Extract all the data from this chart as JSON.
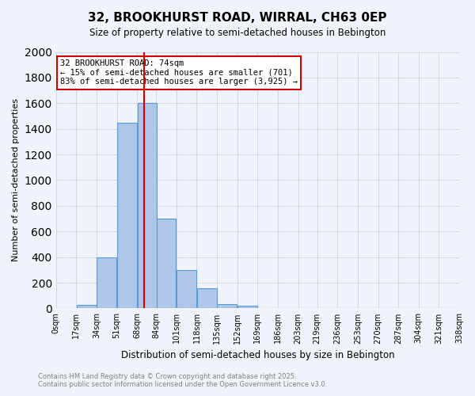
{
  "title_line1": "32, BROOKHURST ROAD, WIRRAL, CH63 0EP",
  "title_line2": "Size of property relative to semi-detached houses in Bebington",
  "xlabel": "Distribution of semi-detached houses by size in Bebington",
  "ylabel": "Number of semi-detached properties",
  "bin_labels": [
    "0sqm",
    "17sqm",
    "34sqm",
    "51sqm",
    "68sqm",
    "84sqm",
    "101sqm",
    "118sqm",
    "135sqm",
    "152sqm",
    "169sqm",
    "186sqm",
    "203sqm",
    "219sqm",
    "236sqm",
    "253sqm",
    "270sqm",
    "287sqm",
    "304sqm",
    "321sqm",
    "338sqm"
  ],
  "bin_edges": [
    0,
    17,
    34,
    51,
    68,
    84,
    101,
    118,
    135,
    152,
    169,
    186,
    203,
    219,
    236,
    253,
    270,
    287,
    304,
    321,
    338
  ],
  "bar_heights": [
    5,
    30,
    400,
    1450,
    1600,
    700,
    300,
    160,
    35,
    20,
    5,
    2,
    1,
    0,
    0,
    0,
    0,
    0,
    0,
    0
  ],
  "bar_color": "#aec6e8",
  "bar_edge_color": "#5b9bd5",
  "property_size": 74,
  "property_label": "32 BROOKHURST ROAD: 74sqm",
  "annotation_line1": "← 15% of semi-detached houses are smaller (701)",
  "annotation_line2": "83% of semi-detached houses are larger (3,925) →",
  "vline_color": "#cc0000",
  "annotation_box_edge": "#cc0000",
  "ylim": [
    0,
    2000
  ],
  "yticks": [
    0,
    200,
    400,
    600,
    800,
    1000,
    1200,
    1400,
    1600,
    1800,
    2000
  ],
  "grid_color": "#d0d8e8",
  "background_color": "#f0f4fa",
  "footer_line1": "Contains HM Land Registry data © Crown copyright and database right 2025.",
  "footer_line2": "Contains public sector information licensed under the Open Government Licence v3.0.",
  "footer_color": "#808080"
}
